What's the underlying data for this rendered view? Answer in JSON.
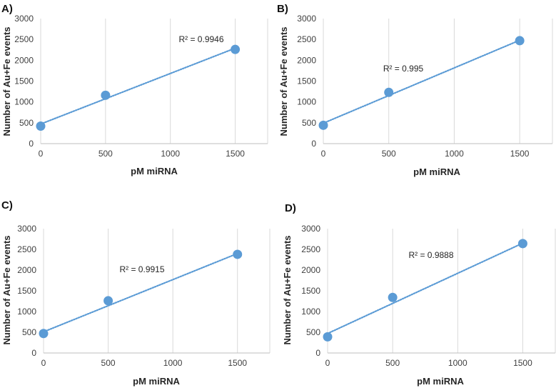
{
  "colors": {
    "point": "#5b9bd5",
    "trendline": "#5b9bd5",
    "grid": "#d9d9d9",
    "axis": "#bfbfbf"
  },
  "chart_data": [
    {
      "type": "scatter",
      "panel_label": "A)",
      "x": [
        0,
        500,
        1500
      ],
      "y": [
        420,
        1160,
        2260
      ],
      "trendline": {
        "type": "linear",
        "label": "R² = 0.9946",
        "start": [
          0,
          470
        ],
        "end": [
          1500,
          2290
        ]
      },
      "xlabel": "pM miRNA",
      "ylabel": "Number of Au+Fe events",
      "xlim": [
        0,
        1750
      ],
      "ylim": [
        0,
        3000
      ],
      "xticks": [
        "0",
        "500",
        "1000",
        "1500"
      ],
      "yticks": [
        "0",
        "500",
        "1000",
        "1500",
        "2000",
        "2500",
        "3000"
      ],
      "grid": "vertical"
    },
    {
      "type": "scatter",
      "panel_label": "B)",
      "x": [
        0,
        500,
        1500
      ],
      "y": [
        440,
        1230,
        2470
      ],
      "trendline": {
        "type": "linear",
        "label": "R² = 0.995",
        "start": [
          0,
          490
        ],
        "end": [
          1500,
          2480
        ]
      },
      "xlabel": "pM miRNA",
      "ylabel": "Number of Au+Fe events",
      "xlim": [
        0,
        1750
      ],
      "ylim": [
        0,
        3000
      ],
      "xticks": [
        "0",
        "500",
        "1000",
        "1500"
      ],
      "yticks": [
        "0",
        "500",
        "1000",
        "1500",
        "2000",
        "2500",
        "3000"
      ],
      "grid": "vertical"
    },
    {
      "type": "scatter",
      "panel_label": "C)",
      "x": [
        0,
        500,
        1500
      ],
      "y": [
        470,
        1260,
        2380
      ],
      "trendline": {
        "type": "linear",
        "label": "R² = 0.9915",
        "start": [
          0,
          510
        ],
        "end": [
          1500,
          2400
        ]
      },
      "xlabel": "pM miRNA",
      "ylabel": "Number of Au+Fe events",
      "xlim": [
        0,
        1750
      ],
      "ylim": [
        0,
        3000
      ],
      "xticks": [
        "0",
        "500",
        "1000",
        "1500"
      ],
      "yticks": [
        "0",
        "500",
        "1000",
        "1500",
        "2000",
        "2500",
        "3000"
      ],
      "grid": "vertical"
    },
    {
      "type": "scatter",
      "panel_label": "D)",
      "x": [
        0,
        500,
        1500
      ],
      "y": [
        390,
        1340,
        2640
      ],
      "trendline": {
        "type": "linear",
        "label": "R² = 0.9888",
        "start": [
          0,
          470
        ],
        "end": [
          1500,
          2650
        ]
      },
      "xlabel": "pM miRNA",
      "ylabel": "Number of Au+Fe events",
      "xlim": [
        0,
        1750
      ],
      "ylim": [
        0,
        3000
      ],
      "xticks": [
        "0",
        "500",
        "1000",
        "1500"
      ],
      "yticks": [
        "0",
        "500",
        "1000",
        "1500",
        "2000",
        "2500",
        "3000"
      ],
      "grid": "vertical"
    }
  ]
}
